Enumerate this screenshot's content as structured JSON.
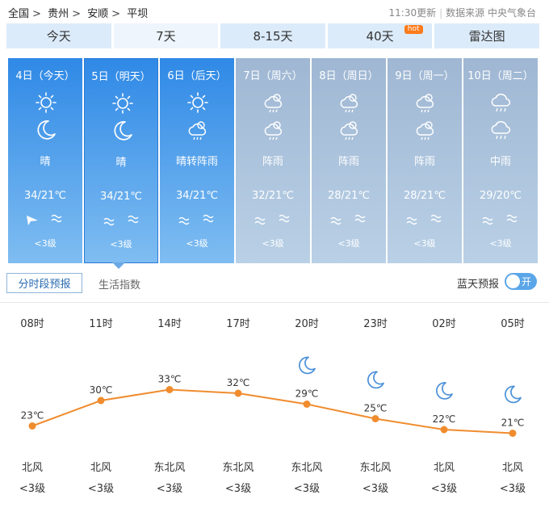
{
  "breadcrumb": [
    "全国",
    "贵州",
    "安顺",
    "平坝"
  ],
  "breadcrumb_sep": ">",
  "update": {
    "time": "11:30更新",
    "source": "数据来源 中央气象台",
    "sep": "|"
  },
  "tabs": [
    {
      "label": "今天"
    },
    {
      "label": "7天",
      "active": true
    },
    {
      "label": "8-15天"
    },
    {
      "label": "40天",
      "badge": "hot"
    },
    {
      "label": "雷达图"
    }
  ],
  "days": [
    {
      "date": "4日（今天）",
      "icon_day": "sun-icon",
      "icon_night": "moon-icon",
      "weather": "晴",
      "temp": "34/21℃",
      "wind_icon": "wind-direction-arrow-icon",
      "wind_level": "<3级",
      "current": true
    },
    {
      "date": "5日（明天）",
      "icon_day": "sun-icon",
      "icon_night": "moon-icon",
      "weather": "晴",
      "temp": "34/21℃",
      "wind_icon": "breeze-icon",
      "wind_level": "<3级",
      "current": true,
      "selected": true
    },
    {
      "date": "6日（后天）",
      "icon_day": "sun-icon",
      "icon_night": "rain-shower-icon",
      "weather": "晴转阵雨",
      "temp": "34/21℃",
      "wind_icon": "breeze-icon",
      "wind_level": "<3级",
      "current": true
    },
    {
      "date": "7日（周六）",
      "icon_day": "rain-shower-icon",
      "icon_night": "rain-shower-icon",
      "weather": "阵雨",
      "temp": "32/21℃",
      "wind_icon": "breeze-icon",
      "wind_level": "<3级"
    },
    {
      "date": "8日（周日）",
      "icon_day": "rain-shower-icon",
      "icon_night": "rain-shower-icon",
      "weather": "阵雨",
      "temp": "28/21℃",
      "wind_icon": "breeze-icon",
      "wind_level": "<3级"
    },
    {
      "date": "9日（周一）",
      "icon_day": "rain-shower-icon",
      "icon_night": "rain-shower-icon",
      "weather": "阵雨",
      "temp": "28/21℃",
      "wind_icon": "breeze-icon",
      "wind_level": "<3级"
    },
    {
      "date": "10日（周二）",
      "icon_day": "rain-icon",
      "icon_night": "rain-icon",
      "weather": "中雨",
      "temp": "29/20℃",
      "wind_icon": "breeze-icon",
      "wind_level": "<3级"
    }
  ],
  "subtabs": {
    "hourly": "分时段预报",
    "life": "生活指数"
  },
  "blue_sky": {
    "label": "蓝天预报",
    "toggle": "开"
  },
  "hourly": [
    {
      "time": "08时",
      "temp": 23,
      "temp_label": "23℃",
      "icon": "",
      "wind": "北风",
      "level": "<3级"
    },
    {
      "time": "11时",
      "temp": 30,
      "temp_label": "30℃",
      "icon": "",
      "wind": "北风",
      "level": "<3级"
    },
    {
      "time": "14时",
      "temp": 33,
      "temp_label": "33℃",
      "icon": "",
      "wind": "东北风",
      "level": "<3级"
    },
    {
      "time": "17时",
      "temp": 32,
      "temp_label": "32℃",
      "icon": "",
      "wind": "东北风",
      "level": "<3级"
    },
    {
      "time": "20时",
      "temp": 29,
      "temp_label": "29℃",
      "icon": "moon-icon",
      "wind": "东北风",
      "level": "<3级"
    },
    {
      "time": "23时",
      "temp": 25,
      "temp_label": "25℃",
      "icon": "moon-icon",
      "wind": "东北风",
      "level": "<3级"
    },
    {
      "time": "02时",
      "temp": 22,
      "temp_label": "22℃",
      "icon": "moon-icon",
      "wind": "北风",
      "level": "<3级"
    },
    {
      "time": "05时",
      "temp": 21,
      "temp_label": "21℃",
      "icon": "moon-icon",
      "wind": "北风",
      "level": "<3级"
    }
  ],
  "colors": {
    "line": "#f08c2e",
    "moon": "#4a90d9",
    "accent": "#2f89e6"
  }
}
